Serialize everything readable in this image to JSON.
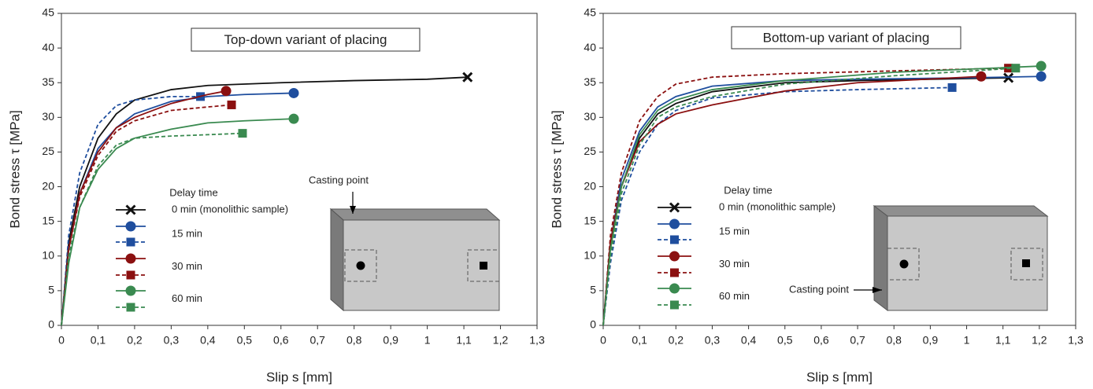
{
  "chart_data": [
    {
      "type": "line",
      "title": "Top-down variant of placing",
      "xlabel": "Slip s [mm]",
      "ylabel": "Bond stress  τ [MPa]",
      "legend_title": "Delay time",
      "annotation": "Casting point",
      "xlim": [
        0,
        1.3
      ],
      "ylim": [
        0,
        45
      ],
      "xticks": [
        0,
        {
          "value": 0.1,
          "label": "0,1"
        },
        {
          "value": 0.2,
          "label": "0,2"
        },
        {
          "value": 0.3,
          "label": "0,3"
        },
        {
          "value": 0.4,
          "label": "0,4"
        },
        {
          "value": 0.5,
          "label": "0,5"
        },
        {
          "value": 0.6,
          "label": "0,6"
        },
        {
          "value": 0.7,
          "label": "0,7"
        },
        {
          "value": 0.8,
          "label": "0,8"
        },
        {
          "value": 0.9,
          "label": "0,9"
        },
        1,
        {
          "value": 1.1,
          "label": "1,1"
        },
        {
          "value": 1.2,
          "label": "1,2"
        },
        {
          "value": 1.3,
          "label": "1,3"
        }
      ],
      "yticks": [
        0,
        5,
        10,
        15,
        20,
        25,
        30,
        35,
        40,
        45
      ],
      "series": [
        {
          "name": "0 min (monolithic sample)",
          "color": "#111111",
          "dashed": false,
          "marker": "x",
          "x": [
            0,
            0.02,
            0.05,
            0.1,
            0.15,
            0.2,
            0.3,
            0.4,
            0.6,
            0.8,
            1.0,
            1.11
          ],
          "values": [
            0,
            12,
            20,
            27,
            30.5,
            32.5,
            34,
            34.6,
            35,
            35.3,
            35.5,
            35.8
          ]
        },
        {
          "name": "15 min",
          "color": "#1f4e9e",
          "dashed": false,
          "marker": "circle",
          "x": [
            0,
            0.02,
            0.05,
            0.1,
            0.15,
            0.2,
            0.3,
            0.4,
            0.5,
            0.635
          ],
          "values": [
            0,
            11,
            19,
            25.5,
            28.5,
            30.5,
            32.3,
            33,
            33.3,
            33.5
          ]
        },
        {
          "color": "#1f4e9e",
          "dashed": true,
          "marker": "square",
          "x": [
            0,
            0.02,
            0.05,
            0.1,
            0.15,
            0.2,
            0.3,
            0.38
          ],
          "values": [
            0,
            13,
            22,
            29,
            31.7,
            32.5,
            33,
            33
          ]
        },
        {
          "name": "30 min",
          "color": "#8b1010",
          "dashed": false,
          "marker": "circle",
          "x": [
            0,
            0.02,
            0.05,
            0.1,
            0.15,
            0.2,
            0.3,
            0.4,
            0.45
          ],
          "values": [
            0,
            11,
            19,
            25,
            28.5,
            30,
            32,
            33.3,
            33.8
          ]
        },
        {
          "color": "#8b1010",
          "dashed": true,
          "marker": "square",
          "x": [
            0,
            0.02,
            0.05,
            0.1,
            0.15,
            0.2,
            0.3,
            0.4,
            0.465
          ],
          "values": [
            0,
            11,
            18.5,
            24.5,
            28,
            29.5,
            31,
            31.5,
            31.8
          ]
        },
        {
          "name": "60 min",
          "color": "#3a8a50",
          "dashed": false,
          "marker": "circle",
          "x": [
            0,
            0.02,
            0.05,
            0.1,
            0.15,
            0.2,
            0.3,
            0.4,
            0.5,
            0.635
          ],
          "values": [
            0,
            9,
            17,
            22.5,
            25.5,
            27,
            28.3,
            29.2,
            29.5,
            29.8
          ]
        },
        {
          "color": "#3a8a50",
          "dashed": true,
          "marker": "square",
          "x": [
            0,
            0.02,
            0.05,
            0.1,
            0.15,
            0.2,
            0.3,
            0.4,
            0.495
          ],
          "values": [
            0,
            10,
            17,
            23,
            26,
            27,
            27.3,
            27.5,
            27.7
          ]
        }
      ]
    },
    {
      "type": "line",
      "title": "Bottom-up variant of placing",
      "xlabel": "Slip s [mm]",
      "ylabel": "Bond stress  τ [MPa]",
      "legend_title": "Delay time",
      "annotation": "Casting point",
      "xlim": [
        0,
        1.3
      ],
      "ylim": [
        0,
        45
      ],
      "xticks": [
        0,
        {
          "value": 0.1,
          "label": "0,1"
        },
        {
          "value": 0.2,
          "label": "0,2"
        },
        {
          "value": 0.3,
          "label": "0,3"
        },
        {
          "value": 0.4,
          "label": "0,4"
        },
        {
          "value": 0.5,
          "label": "0,5"
        },
        {
          "value": 0.6,
          "label": "0,6"
        },
        {
          "value": 0.7,
          "label": "0,7"
        },
        {
          "value": 0.8,
          "label": "0,8"
        },
        {
          "value": 0.9,
          "label": "0,9"
        },
        1,
        {
          "value": 1.1,
          "label": "1,1"
        },
        {
          "value": 1.2,
          "label": "1,2"
        },
        {
          "value": 1.3,
          "label": "1,3"
        }
      ],
      "yticks": [
        0,
        5,
        10,
        15,
        20,
        25,
        30,
        35,
        40,
        45
      ],
      "series": [
        {
          "name": "0 min (monolithic sample)",
          "color": "#111111",
          "dashed": false,
          "marker": "x",
          "x": [
            0,
            0.02,
            0.05,
            0.1,
            0.15,
            0.2,
            0.3,
            0.5,
            0.7,
            0.9,
            1.115
          ],
          "values": [
            0,
            12,
            20,
            27,
            30.5,
            32,
            33.7,
            35,
            35.3,
            35.5,
            35.7
          ]
        },
        {
          "name": "15 min",
          "color": "#1f4e9e",
          "dashed": false,
          "marker": "circle",
          "x": [
            0,
            0.02,
            0.05,
            0.1,
            0.15,
            0.2,
            0.3,
            0.5,
            0.7,
            1.0,
            1.205
          ],
          "values": [
            0,
            12,
            21,
            28,
            31.5,
            33,
            34.5,
            35.3,
            35.5,
            35.7,
            35.9
          ]
        },
        {
          "color": "#1f4e9e",
          "dashed": true,
          "marker": "square",
          "x": [
            0,
            0.02,
            0.05,
            0.1,
            0.15,
            0.2,
            0.3,
            0.5,
            0.7,
            0.96
          ],
          "values": [
            0,
            9,
            18,
            25,
            29,
            31,
            32.8,
            33.7,
            34,
            34.3
          ]
        },
        {
          "name": "30 min",
          "color": "#8b1010",
          "dashed": false,
          "marker": "circle",
          "x": [
            0,
            0.02,
            0.05,
            0.1,
            0.15,
            0.2,
            0.3,
            0.4,
            0.5,
            0.7,
            1.04
          ],
          "values": [
            0,
            12,
            20,
            26.5,
            29,
            30.5,
            31.8,
            32.8,
            33.8,
            35,
            35.9
          ]
        },
        {
          "color": "#8b1010",
          "dashed": true,
          "marker": "square",
          "x": [
            0,
            0.02,
            0.05,
            0.1,
            0.15,
            0.2,
            0.3,
            0.5,
            0.8,
            1.115
          ],
          "values": [
            0,
            13,
            22,
            29.5,
            33,
            34.8,
            35.8,
            36.3,
            36.7,
            37.1
          ]
        },
        {
          "name": "60 min",
          "color": "#3a8a50",
          "dashed": false,
          "marker": "circle",
          "x": [
            0,
            0.02,
            0.05,
            0.1,
            0.15,
            0.2,
            0.3,
            0.5,
            0.8,
            1.205
          ],
          "values": [
            0,
            11,
            20,
            27.5,
            31,
            32.5,
            34,
            35.3,
            36.5,
            37.4
          ]
        },
        {
          "color": "#3a8a50",
          "dashed": true,
          "marker": "square",
          "x": [
            0,
            0.02,
            0.05,
            0.1,
            0.15,
            0.2,
            0.3,
            0.5,
            0.8,
            1.135
          ],
          "values": [
            0,
            10,
            19,
            26,
            30,
            31.5,
            33,
            34.8,
            36,
            37.1
          ]
        }
      ]
    }
  ]
}
